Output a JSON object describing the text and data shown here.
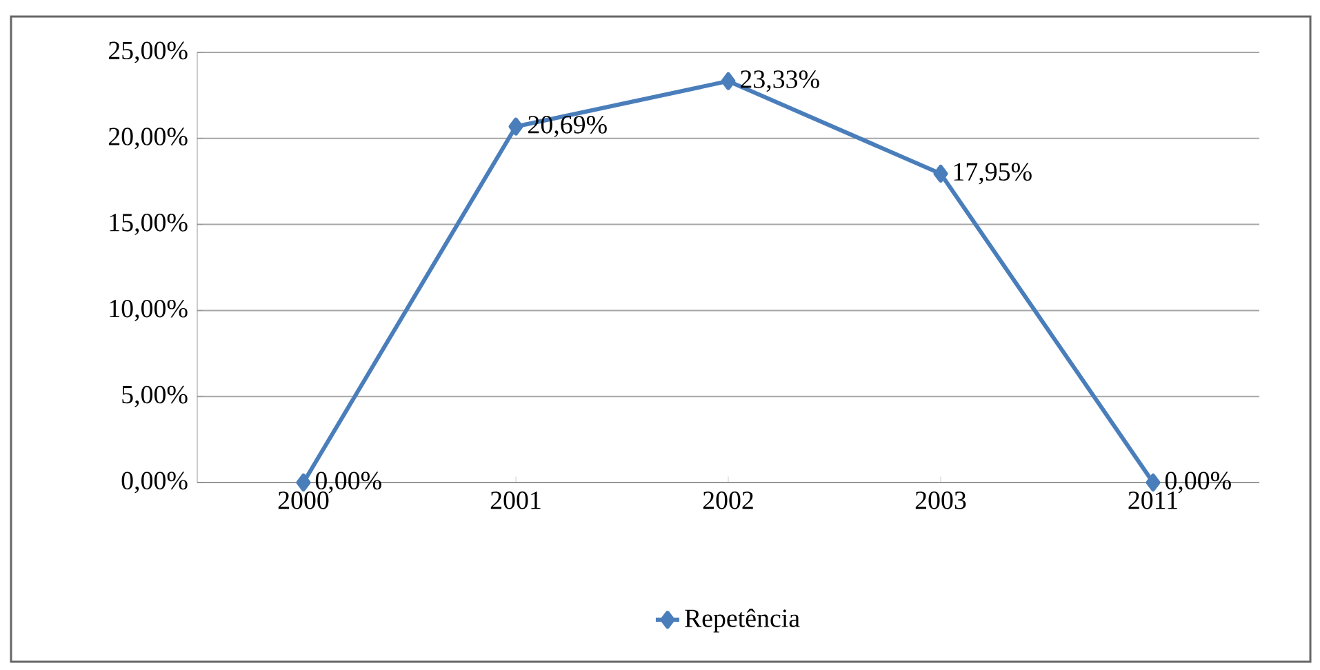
{
  "chart_data": {
    "type": "line",
    "categories": [
      "2000",
      "2001",
      "2002",
      "2003",
      "2011"
    ],
    "series": [
      {
        "name": "Repetência",
        "color": "#4a7ebb",
        "values": [
          0,
          20.69,
          23.33,
          17.95,
          0
        ],
        "value_labels": [
          "0,00%",
          "20,69%",
          "23,33%",
          "17,95%",
          "0,00%"
        ]
      }
    ],
    "ylim": [
      0,
      25
    ],
    "yticks": [
      {
        "value": 0,
        "label": "0,00%"
      },
      {
        "value": 5,
        "label": "5,00%"
      },
      {
        "value": 10,
        "label": "10,00%"
      },
      {
        "value": 15,
        "label": "15,00%"
      },
      {
        "value": 20,
        "label": "20,00%"
      },
      {
        "value": 25,
        "label": "25,00%"
      }
    ],
    "grid": "y",
    "legend": "bottom",
    "marker": "diamond",
    "line_style": "solid"
  }
}
